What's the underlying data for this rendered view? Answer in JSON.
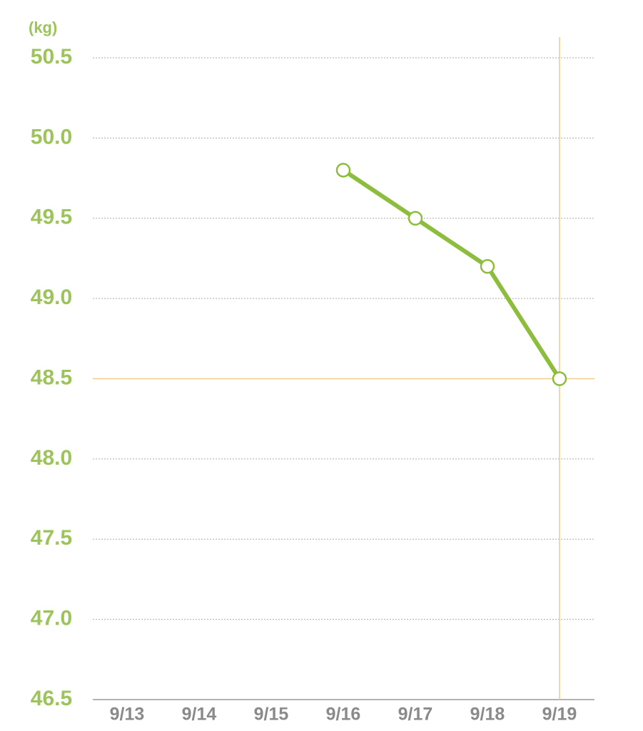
{
  "chart_data": {
    "type": "line",
    "y_label": "(kg)",
    "categories": [
      "9/13",
      "9/14",
      "9/15",
      "9/16",
      "9/17",
      "9/18",
      "9/19"
    ],
    "series": [
      {
        "name": null,
        "color": "#8cbd3c",
        "values": [
          null,
          null,
          null,
          49.8,
          49.5,
          49.2,
          48.5
        ]
      }
    ],
    "ylim": [
      46.5,
      50.5
    ],
    "yticks": [
      46.5,
      {
        "value": 47,
        "label": "47.0"
      },
      47.5,
      {
        "value": 48,
        "label": "48.0"
      },
      48.5,
      {
        "value": 49,
        "label": "49.0"
      },
      49.5,
      {
        "value": 50,
        "label": "50.0"
      },
      50.5
    ],
    "grid": true,
    "tick_color": "#9dc45b",
    "category_color": "#8a8a8a",
    "highlight_color": "#f3c98f"
  }
}
